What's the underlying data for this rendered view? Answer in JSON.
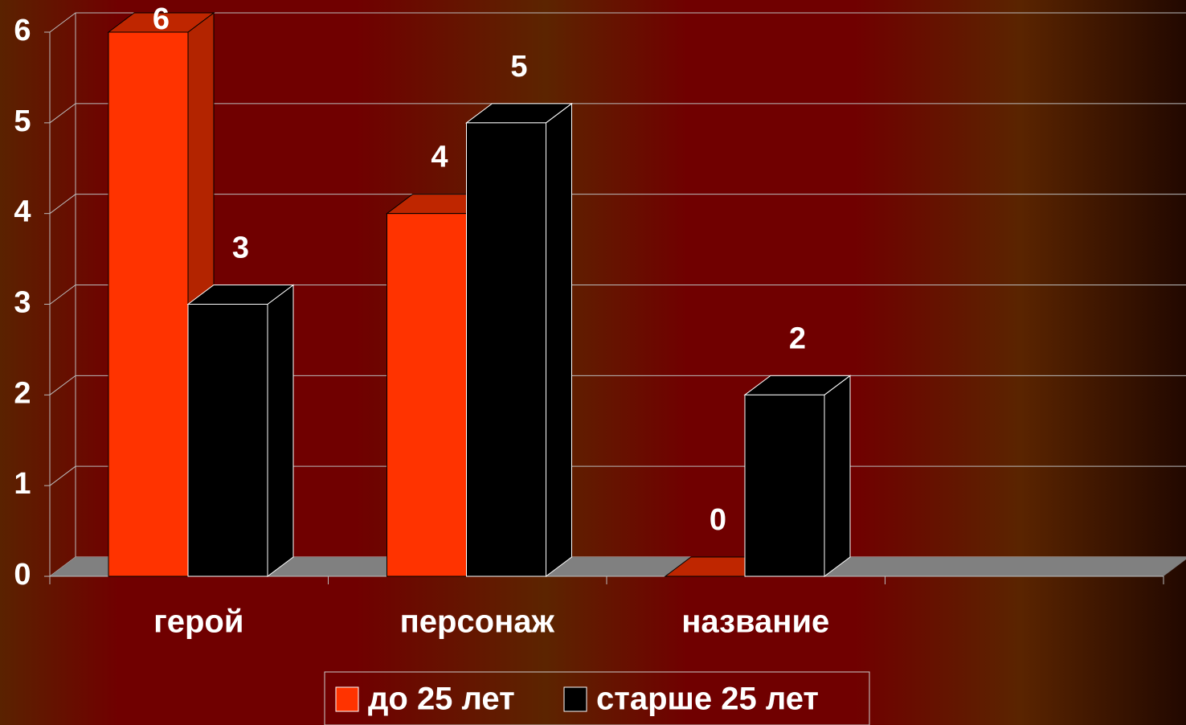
{
  "chart_data": {
    "type": "bar3d",
    "categories": [
      "герой",
      "персонаж",
      "название",
      null
    ],
    "series": [
      {
        "name": "до 25 лет",
        "color": "#ff3300",
        "values": [
          6,
          4,
          0,
          null
        ]
      },
      {
        "name": "старше 25 лет",
        "color": "#000000",
        "values": [
          3,
          5,
          2,
          null
        ]
      }
    ],
    "ylim": [
      0,
      6
    ],
    "yticks": [
      0,
      1,
      2,
      3,
      4,
      5,
      6
    ],
    "grid": true,
    "legend": "bottom"
  }
}
